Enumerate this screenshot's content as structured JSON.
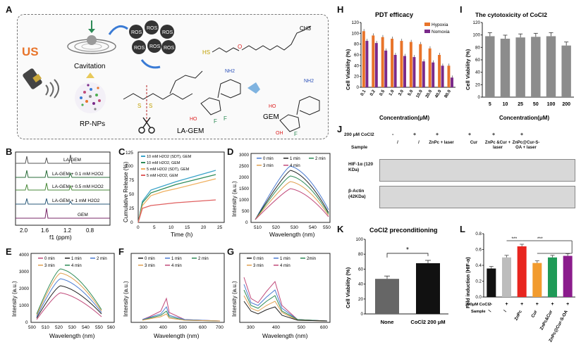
{
  "figure": {
    "panel_letters": [
      "A",
      "B",
      "C",
      "D",
      "E",
      "F",
      "G",
      "H",
      "I",
      "J",
      "K",
      "L"
    ]
  },
  "schematic": {
    "us_label": "US",
    "cavitation_label": "Cavitation",
    "np_label": "RP-NPs",
    "ros_label": "ROS",
    "gem_label": "GEM",
    "la_gem_label": "LA-GEM",
    "F": "F",
    "NH2": "NH2",
    "HO": "HO",
    "OH": "OH",
    "O": "O",
    "N": "N",
    "S": "S",
    "HS": "HS",
    "CH3": "CH3"
  },
  "colors": {
    "hypoxia": "#e8742a",
    "normoxia": "#7a2a8a",
    "gray_bar": "#8c8c8c",
    "k_none": "#666666",
    "k_cocl2": "#111111"
  },
  "panel_B": {
    "traces": [
      "LA-GEM",
      "LA-GEM + 0.1 mM H2O2",
      "LA-GEM + 0.5 mM H2O2",
      "LA-GEM + 1 mM H2O2",
      "GEM"
    ],
    "xlabel": "f1 (ppm)",
    "xticks": [
      "2.0",
      "1.6",
      "1.2",
      "0.8"
    ]
  },
  "panel_C": {
    "ylabel": "Cumulative Release (%)",
    "xlabel": "Time (h)",
    "xticks": [
      "0",
      "5",
      "10",
      "15",
      "20",
      "25"
    ],
    "yticks": [
      "0",
      "25",
      "50",
      "75",
      "100",
      "125"
    ],
    "legend": [
      "10 mM H2O2 (SDT), GEM",
      "10 mM H2O2, GEM",
      "5 mM H2O2 (SDT), GEM",
      "5 mM H2O2, GEM"
    ]
  },
  "panel_D": {
    "ylabel": "Intensity (a.u.)",
    "xlabel": "Wavelength (nm)",
    "xticks": [
      "510",
      "520",
      "530",
      "540",
      "550"
    ],
    "yticks": [
      "0",
      "500",
      "1000",
      "1500",
      "2000",
      "2500",
      "3000"
    ],
    "legend": [
      "0 min",
      "1 min",
      "2 min",
      "3 min",
      "4 min"
    ]
  },
  "panel_E": {
    "ylabel": "Intensity (a.u.)",
    "xlabel": "Wavelength (nm)",
    "xticks": [
      "500",
      "510",
      "520",
      "530",
      "540",
      "550",
      "560"
    ],
    "yticks": [
      "0",
      "1000",
      "2000",
      "3000",
      "4000"
    ],
    "legend": [
      "0 min",
      "1 min",
      "2 min",
      "3 min",
      "4 min"
    ]
  },
  "panel_F": {
    "ylabel": "Intensity (a.u.)",
    "xlabel": "Wavelength (nm)",
    "xticks": [
      "300",
      "400",
      "500",
      "600",
      "700"
    ],
    "legend": [
      "0 min",
      "1 min",
      "2 min",
      "3 min",
      "4 min"
    ]
  },
  "panel_G": {
    "ylabel": "Intensity (a.u.)",
    "xlabel": "Wavelength (nm)",
    "xticks": [
      "300",
      "400",
      "500",
      "600"
    ],
    "legend": [
      "0 min",
      "1 min",
      "2min",
      "3 min",
      "4 min"
    ]
  },
  "panel_J": {
    "header_cocl2": "200 μM CoCl2",
    "header_sample": "Sample",
    "cocl2_marks": [
      "-",
      "+",
      "+",
      "+",
      "+",
      "+"
    ],
    "samples": [
      "/",
      "/",
      "ZnPc + laser",
      "Cur",
      "ZnPc &Cur + laser",
      "ZnPc@Cur-S-OA + laser"
    ],
    "band_labels": [
      "HIF-1α (120 KDa)",
      "β-Actin (42KDa)"
    ]
  },
  "panel_L_labels": {
    "cocl2_row": "200μM CoCl2",
    "sample_row": "Sample",
    "signif": "***"
  },
  "chart_data": [
    {
      "panel": "H",
      "type": "bar",
      "title": "PDT efficacy",
      "xlabel": "Concentration(μM)",
      "ylabel": "Cell Viability (%)",
      "ylim": [
        0,
        120
      ],
      "yticks": [
        "0",
        "20",
        "40",
        "60",
        "80",
        "100",
        "120"
      ],
      "categories": [
        "0.1",
        "0.2",
        "0.5",
        "1.0",
        "3.0",
        "5.0",
        "10.0",
        "20.0",
        "40.0",
        "80.0"
      ],
      "series": [
        {
          "name": "Hypoxia",
          "values": [
            104,
            96,
            93,
            90,
            86,
            84,
            80,
            72,
            60,
            40
          ]
        },
        {
          "name": "Nomoxia",
          "values": [
            86,
            82,
            68,
            60,
            58,
            56,
            48,
            46,
            40,
            18
          ]
        }
      ],
      "legend_position": "top-right"
    },
    {
      "panel": "I",
      "type": "bar",
      "title": "The cytotoxicity of CoCl2",
      "xlabel": "Concentration(μM)",
      "ylabel": "Cell Viability (%)",
      "ylim": [
        0,
        120
      ],
      "yticks": [
        "0",
        "20",
        "40",
        "60",
        "80",
        "100",
        "120"
      ],
      "categories": [
        "5",
        "10",
        "25",
        "50",
        "100",
        "200"
      ],
      "values": [
        98,
        94,
        96,
        97,
        98,
        83
      ]
    },
    {
      "panel": "K",
      "type": "bar",
      "title": "CoCl2 preconditioning",
      "ylabel": "Cell Viability (%)",
      "ylim": [
        0,
        100
      ],
      "yticks": [
        "0",
        "20",
        "40",
        "60",
        "80",
        "100"
      ],
      "categories": [
        "None",
        "CoCl2 200 μM"
      ],
      "values": [
        47,
        68
      ],
      "annotation": "*"
    },
    {
      "panel": "L",
      "type": "bar",
      "ylabel": "Fold induction (HIF-α)",
      "ylim": [
        0.0,
        0.8
      ],
      "yticks": [
        "0.0",
        "0.2",
        "0.4",
        "0.6",
        "0.8"
      ],
      "categories": [
        "/",
        "/",
        "ZnPc",
        "Cur",
        "ZnPc&Cur",
        "ZnPc@Cur-S-OA"
      ],
      "cocl2": [
        "-",
        "+",
        "+",
        "+",
        "+",
        "+"
      ],
      "values": [
        0.36,
        0.5,
        0.64,
        0.43,
        0.5,
        0.52
      ],
      "colors": [
        "#111111",
        "#bdbdbd",
        "#e8251f",
        "#f29b2e",
        "#1f9a57",
        "#8b1c8c"
      ]
    }
  ]
}
